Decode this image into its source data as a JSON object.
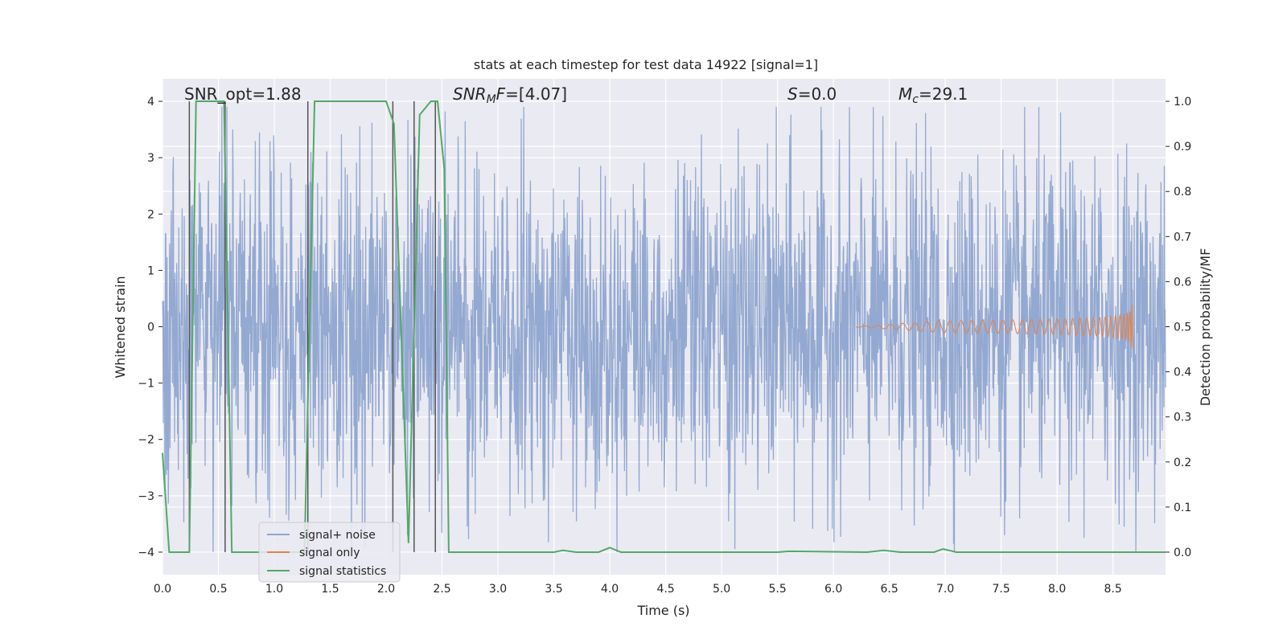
{
  "chart_data": {
    "type": "line",
    "title": "stats at each timestep for test data 14922 [signal=1]",
    "xlabel": "Time (s)",
    "ylabel": "Whitened strain",
    "ylabel_right": "Detection probability/MF",
    "xlim": [
      0,
      8.97
    ],
    "ylim": [
      -4.4,
      4.4
    ],
    "ylim_right": [
      -0.05,
      1.05
    ],
    "x_ticks": [
      "0.0",
      "0.5",
      "1.0",
      "1.5",
      "2.0",
      "2.5",
      "3.0",
      "3.5",
      "4.0",
      "4.5",
      "5.0",
      "5.5",
      "6.0",
      "6.5",
      "7.0",
      "7.5",
      "8.0",
      "8.5"
    ],
    "y_ticks": [
      "4",
      "3",
      "2",
      "1",
      "0",
      "−1",
      "−2",
      "−3",
      "−4"
    ],
    "y_ticks_right": [
      "1.0",
      "0.9",
      "0.8",
      "0.7",
      "0.6",
      "0.5",
      "0.4",
      "0.3",
      "0.2",
      "0.1",
      "0.0"
    ],
    "annotations": {
      "snr_opt": "SNR_opt=1.88",
      "snr_mf_main": "SNR",
      "snr_mf_sub": "M",
      "snr_mf_tail": "F",
      "snr_mf_value": "=[4.07]",
      "s_main": "S",
      "s_value": "=0.0",
      "mc_main": "M",
      "mc_sub": "c",
      "mc_value": "=29.1"
    },
    "legend": {
      "placement": "lower-left",
      "entries": [
        "signal+ noise",
        "signal only",
        "signal statistics"
      ]
    },
    "colors": {
      "noise": "#8fa5cf",
      "signal": "#dd8452",
      "stats": "#55a868",
      "background": "#eaeaf2",
      "vline": "#555555"
    },
    "series": [
      {
        "name": "signal+ noise",
        "description": "whitened strain time series, amplitude roughly within -3.5..3.5",
        "noise_envelope": 1.6,
        "x_start": 0,
        "x_end": 8.97,
        "n_points": 2400
      },
      {
        "name": "signal only",
        "description": "chirp growing toward merger",
        "x": [
          6.2,
          8.68
        ],
        "peak_amplitude": 0.5,
        "merger_time": 8.68
      },
      {
        "name": "signal statistics",
        "axis": "right",
        "x": [
          0.0,
          0.06,
          0.24,
          0.3,
          0.55,
          0.62,
          1.27,
          1.36,
          1.6,
          1.8,
          2.0,
          2.07,
          2.2,
          2.3,
          2.4,
          2.46,
          2.52,
          2.56,
          3.5,
          3.58,
          3.7,
          3.9,
          4.0,
          4.1,
          5.5,
          5.6,
          6.3,
          6.45,
          6.6,
          6.9,
          6.98,
          7.1,
          8.97
        ],
        "y": [
          0.22,
          0.0,
          0.0,
          1.0,
          1.0,
          0.0,
          0.0,
          1.0,
          1.0,
          1.0,
          1.0,
          0.95,
          0.02,
          0.97,
          1.0,
          1.0,
          0.85,
          0.0,
          0.0,
          0.004,
          0.0,
          0.0,
          0.01,
          0.0,
          0.0,
          0.002,
          0.0,
          0.004,
          0.0,
          0.0,
          0.007,
          0.0,
          0.0
        ]
      }
    ],
    "vlines_x": [
      0.24,
      0.56,
      1.3,
      2.06,
      2.25,
      2.44
    ]
  }
}
